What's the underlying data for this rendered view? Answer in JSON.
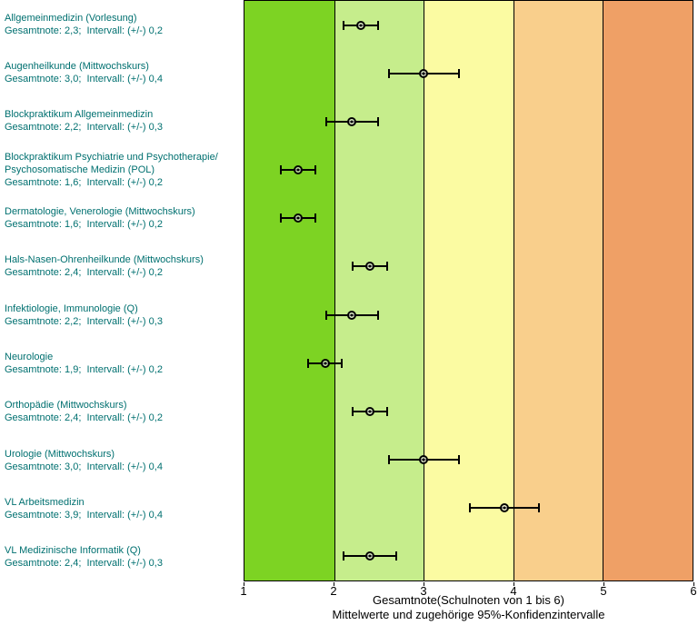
{
  "styles": {
    "label_color": "#007070",
    "axis_color": "#000000",
    "marker_color": "#000000"
  },
  "chart_data": {
    "type": "scatter",
    "title": "",
    "xlabel_line1": "Gesamtnote(Schulnoten von 1 bis 6)",
    "xlabel_line2": "Mittelwerte und zugehörige 95%-Konfidenzintervalle",
    "xlim": [
      1,
      6
    ],
    "xticks": [
      "1",
      "2",
      "3",
      "4",
      "5",
      "6"
    ],
    "grid": "vertical-at-integers",
    "legend": "none",
    "bands": [
      {
        "from": 1,
        "to": 2,
        "color": "#7DD323"
      },
      {
        "from": 2,
        "to": 3,
        "color": "#C6ED8C"
      },
      {
        "from": 3,
        "to": 4,
        "color": "#FBFBA2"
      },
      {
        "from": 4,
        "to": 5,
        "color": "#F9CF8C"
      },
      {
        "from": 5,
        "to": 6,
        "color": "#EFA066"
      }
    ],
    "points": [
      {
        "name_lines": [
          "Allgemeinmedizin (Vorlesung)"
        ],
        "stats": "Gesamtnote: 2,3;  Intervall: (+/-) 0,2",
        "mean": 2.3,
        "interval": 0.2
      },
      {
        "name_lines": [
          "Augenheilkunde (Mittwochskurs)"
        ],
        "stats": "Gesamtnote: 3,0;  Intervall: (+/-) 0,4",
        "mean": 3.0,
        "interval": 0.4
      },
      {
        "name_lines": [
          "Blockpraktikum Allgemeinmedizin"
        ],
        "stats": "Gesamtnote: 2,2;  Intervall: (+/-) 0,3",
        "mean": 2.2,
        "interval": 0.3
      },
      {
        "name_lines": [
          "Blockpraktikum Psychiatrie und Psychotherapie/",
          "Psychosomatische Medizin (POL)"
        ],
        "stats": "Gesamtnote: 1,6;  Intervall: (+/-) 0,2",
        "mean": 1.6,
        "interval": 0.2
      },
      {
        "name_lines": [
          "Dermatologie, Venerologie (Mittwochskurs)"
        ],
        "stats": "Gesamtnote: 1,6;  Intervall: (+/-) 0,2",
        "mean": 1.6,
        "interval": 0.2
      },
      {
        "name_lines": [
          "Hals-Nasen-Ohrenheilkunde (Mittwochskurs)"
        ],
        "stats": "Gesamtnote: 2,4;  Intervall: (+/-) 0,2",
        "mean": 2.4,
        "interval": 0.2
      },
      {
        "name_lines": [
          "Infektiologie, Immunologie (Q)"
        ],
        "stats": "Gesamtnote: 2,2;  Intervall: (+/-) 0,3",
        "mean": 2.2,
        "interval": 0.3
      },
      {
        "name_lines": [
          "Neurologie"
        ],
        "stats": "Gesamtnote: 1,9;  Intervall: (+/-) 0,2",
        "mean": 1.9,
        "interval": 0.2
      },
      {
        "name_lines": [
          "Orthopädie (Mittwochskurs)"
        ],
        "stats": "Gesamtnote: 2,4;  Intervall: (+/-) 0,2",
        "mean": 2.4,
        "interval": 0.2
      },
      {
        "name_lines": [
          "Urologie (Mittwochskurs)"
        ],
        "stats": "Gesamtnote: 3,0;  Intervall: (+/-) 0,4",
        "mean": 3.0,
        "interval": 0.4
      },
      {
        "name_lines": [
          "VL Arbeitsmedizin"
        ],
        "stats": "Gesamtnote: 3,9;  Intervall: (+/-) 0,4",
        "mean": 3.9,
        "interval": 0.4
      },
      {
        "name_lines": [
          "VL Medizinische Informatik (Q)"
        ],
        "stats": "Gesamtnote: 2,4;  Intervall: (+/-) 0,3",
        "mean": 2.4,
        "interval": 0.3
      }
    ]
  }
}
